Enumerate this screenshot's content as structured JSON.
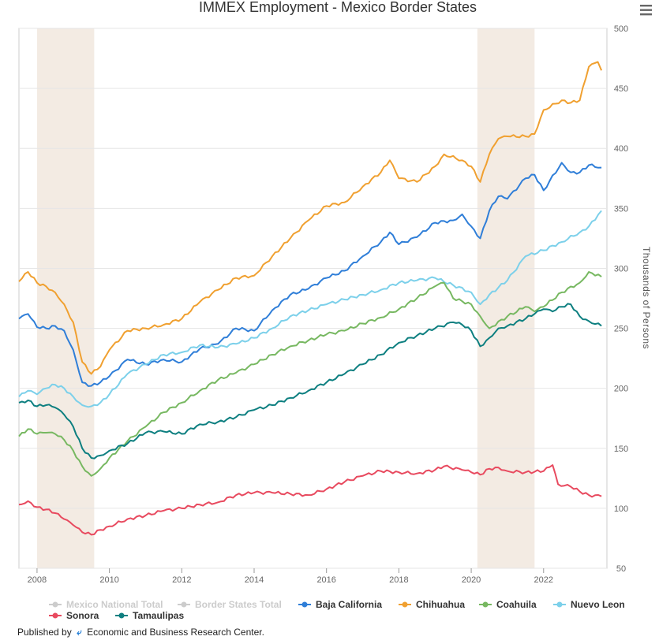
{
  "menu_icon": "hamburger-menu-icon",
  "footer": {
    "published_by": "Published by",
    "org": "Economic and Business Research Center."
  },
  "chart_data": {
    "type": "line",
    "title": "IMMEX Employment - Mexico Border States",
    "xlabel": "",
    "ylabel": "Thousands of Persons",
    "xlim": [
      2007.5,
      2023.75
    ],
    "ylim": [
      50,
      500
    ],
    "yticks": [
      50,
      100,
      150,
      200,
      250,
      300,
      350,
      400,
      450,
      500
    ],
    "xticks": [
      2008,
      2010,
      2012,
      2014,
      2016,
      2018,
      2020,
      2022
    ],
    "recessions": [
      [
        2008.0,
        2009.58
      ],
      [
        2020.17,
        2021.75
      ]
    ],
    "recession_color": "#f3ebe3",
    "legend": [
      {
        "name": "Mexico National Total",
        "color": "#cccccc",
        "visible": false
      },
      {
        "name": "Border States Total",
        "color": "#cccccc",
        "visible": false
      },
      {
        "name": "Baja California",
        "color": "#2f7ed8",
        "visible": true
      },
      {
        "name": "Chihuahua",
        "color": "#f0a030",
        "visible": true
      },
      {
        "name": "Coahuila",
        "color": "#77b861",
        "visible": true
      },
      {
        "name": "Nuevo Leon",
        "color": "#7cd0ea",
        "visible": true
      },
      {
        "name": "Sonora",
        "color": "#e84a5f",
        "visible": true
      },
      {
        "name": "Tamaulipas",
        "color": "#0d7f80",
        "visible": true
      }
    ],
    "series": [
      {
        "name": "Chihuahua",
        "color": "#f0a030",
        "points": [
          [
            2007.5,
            289
          ],
          [
            2007.75,
            297
          ],
          [
            2008.0,
            288
          ],
          [
            2008.25,
            285
          ],
          [
            2008.5,
            280
          ],
          [
            2008.75,
            270
          ],
          [
            2009.0,
            255
          ],
          [
            2009.25,
            222
          ],
          [
            2009.5,
            212
          ],
          [
            2009.75,
            218
          ],
          [
            2010.0,
            232
          ],
          [
            2010.5,
            248
          ],
          [
            2011.0,
            250
          ],
          [
            2011.5,
            253
          ],
          [
            2012.0,
            258
          ],
          [
            2012.5,
            272
          ],
          [
            2013.0,
            282
          ],
          [
            2013.5,
            292
          ],
          [
            2014.0,
            294
          ],
          [
            2014.5,
            310
          ],
          [
            2015.0,
            325
          ],
          [
            2015.5,
            340
          ],
          [
            2016.0,
            352
          ],
          [
            2016.5,
            355
          ],
          [
            2017.0,
            368
          ],
          [
            2017.5,
            380
          ],
          [
            2017.75,
            390
          ],
          [
            2018.0,
            375
          ],
          [
            2018.5,
            372
          ],
          [
            2019.0,
            385
          ],
          [
            2019.25,
            395
          ],
          [
            2019.75,
            390
          ],
          [
            2020.0,
            385
          ],
          [
            2020.25,
            372
          ],
          [
            2020.5,
            395
          ],
          [
            2020.75,
            408
          ],
          [
            2021.0,
            410
          ],
          [
            2021.5,
            410
          ],
          [
            2021.75,
            412
          ],
          [
            2022.0,
            432
          ],
          [
            2022.5,
            440
          ],
          [
            2022.75,
            438
          ],
          [
            2023.0,
            440
          ],
          [
            2023.25,
            468
          ],
          [
            2023.5,
            472
          ],
          [
            2023.6,
            465
          ]
        ]
      },
      {
        "name": "Baja California",
        "color": "#2f7ed8",
        "points": [
          [
            2007.5,
            258
          ],
          [
            2007.75,
            262
          ],
          [
            2008.0,
            251
          ],
          [
            2008.25,
            250
          ],
          [
            2008.5,
            252
          ],
          [
            2008.75,
            248
          ],
          [
            2009.0,
            232
          ],
          [
            2009.25,
            205
          ],
          [
            2009.5,
            202
          ],
          [
            2009.75,
            205
          ],
          [
            2010.0,
            210
          ],
          [
            2010.5,
            224
          ],
          [
            2011.0,
            220
          ],
          [
            2011.5,
            224
          ],
          [
            2012.0,
            222
          ],
          [
            2012.5,
            233
          ],
          [
            2013.0,
            237
          ],
          [
            2013.5,
            250
          ],
          [
            2014.0,
            248
          ],
          [
            2014.5,
            265
          ],
          [
            2015.0,
            278
          ],
          [
            2015.5,
            283
          ],
          [
            2016.0,
            292
          ],
          [
            2016.5,
            298
          ],
          [
            2017.0,
            310
          ],
          [
            2017.5,
            322
          ],
          [
            2017.75,
            330
          ],
          [
            2018.0,
            320
          ],
          [
            2018.5,
            326
          ],
          [
            2019.0,
            338
          ],
          [
            2019.5,
            340
          ],
          [
            2019.75,
            345
          ],
          [
            2020.0,
            335
          ],
          [
            2020.25,
            325
          ],
          [
            2020.5,
            348
          ],
          [
            2020.75,
            360
          ],
          [
            2021.0,
            358
          ],
          [
            2021.5,
            375
          ],
          [
            2021.75,
            378
          ],
          [
            2022.0,
            365
          ],
          [
            2022.5,
            388
          ],
          [
            2022.75,
            380
          ],
          [
            2023.0,
            380
          ],
          [
            2023.25,
            386
          ],
          [
            2023.6,
            384
          ]
        ]
      },
      {
        "name": "Nuevo Leon",
        "color": "#7cd0ea",
        "points": [
          [
            2007.5,
            193
          ],
          [
            2007.75,
            198
          ],
          [
            2008.0,
            195
          ],
          [
            2008.25,
            200
          ],
          [
            2008.5,
            203
          ],
          [
            2008.75,
            200
          ],
          [
            2009.0,
            193
          ],
          [
            2009.25,
            186
          ],
          [
            2009.5,
            185
          ],
          [
            2009.75,
            188
          ],
          [
            2010.0,
            195
          ],
          [
            2010.5,
            212
          ],
          [
            2011.0,
            220
          ],
          [
            2011.5,
            228
          ],
          [
            2012.0,
            230
          ],
          [
            2012.5,
            236
          ],
          [
            2013.0,
            234
          ],
          [
            2013.5,
            237
          ],
          [
            2014.0,
            242
          ],
          [
            2014.5,
            250
          ],
          [
            2015.0,
            260
          ],
          [
            2015.5,
            265
          ],
          [
            2016.0,
            270
          ],
          [
            2016.5,
            274
          ],
          [
            2017.0,
            278
          ],
          [
            2017.5,
            282
          ],
          [
            2018.0,
            288
          ],
          [
            2018.5,
            290
          ],
          [
            2019.0,
            292
          ],
          [
            2019.5,
            286
          ],
          [
            2020.0,
            280
          ],
          [
            2020.25,
            270
          ],
          [
            2020.5,
            278
          ],
          [
            2021.0,
            290
          ],
          [
            2021.5,
            310
          ],
          [
            2022.0,
            315
          ],
          [
            2022.5,
            322
          ],
          [
            2023.0,
            330
          ],
          [
            2023.25,
            335
          ],
          [
            2023.6,
            348
          ]
        ]
      },
      {
        "name": "Coahuila",
        "color": "#77b861",
        "points": [
          [
            2007.5,
            160
          ],
          [
            2007.75,
            166
          ],
          [
            2008.0,
            162
          ],
          [
            2008.25,
            163
          ],
          [
            2008.5,
            162
          ],
          [
            2008.75,
            157
          ],
          [
            2009.0,
            148
          ],
          [
            2009.25,
            135
          ],
          [
            2009.5,
            127
          ],
          [
            2009.75,
            133
          ],
          [
            2010.0,
            142
          ],
          [
            2010.5,
            156
          ],
          [
            2011.0,
            168
          ],
          [
            2011.5,
            180
          ],
          [
            2012.0,
            188
          ],
          [
            2012.5,
            198
          ],
          [
            2013.0,
            207
          ],
          [
            2013.5,
            213
          ],
          [
            2014.0,
            220
          ],
          [
            2014.5,
            228
          ],
          [
            2015.0,
            235
          ],
          [
            2015.5,
            240
          ],
          [
            2016.0,
            245
          ],
          [
            2016.5,
            248
          ],
          [
            2017.0,
            254
          ],
          [
            2017.5,
            259
          ],
          [
            2018.0,
            266
          ],
          [
            2018.5,
            275
          ],
          [
            2019.0,
            285
          ],
          [
            2019.25,
            288
          ],
          [
            2019.5,
            275
          ],
          [
            2020.0,
            270
          ],
          [
            2020.25,
            260
          ],
          [
            2020.5,
            250
          ],
          [
            2021.0,
            260
          ],
          [
            2021.5,
            268
          ],
          [
            2021.75,
            264
          ],
          [
            2022.0,
            268
          ],
          [
            2022.5,
            280
          ],
          [
            2023.0,
            288
          ],
          [
            2023.25,
            297
          ],
          [
            2023.6,
            293
          ]
        ]
      },
      {
        "name": "Tamaulipas",
        "color": "#0d7f80",
        "points": [
          [
            2007.5,
            188
          ],
          [
            2007.75,
            190
          ],
          [
            2008.0,
            185
          ],
          [
            2008.25,
            186
          ],
          [
            2008.5,
            184
          ],
          [
            2008.75,
            178
          ],
          [
            2009.0,
            168
          ],
          [
            2009.25,
            150
          ],
          [
            2009.5,
            142
          ],
          [
            2009.75,
            144
          ],
          [
            2010.0,
            148
          ],
          [
            2010.5,
            154
          ],
          [
            2011.0,
            163
          ],
          [
            2011.5,
            164
          ],
          [
            2012.0,
            162
          ],
          [
            2012.5,
            170
          ],
          [
            2013.0,
            172
          ],
          [
            2013.5,
            176
          ],
          [
            2014.0,
            182
          ],
          [
            2014.5,
            186
          ],
          [
            2015.0,
            192
          ],
          [
            2015.5,
            198
          ],
          [
            2016.0,
            205
          ],
          [
            2016.5,
            212
          ],
          [
            2017.0,
            220
          ],
          [
            2017.5,
            228
          ],
          [
            2018.0,
            238
          ],
          [
            2018.5,
            244
          ],
          [
            2019.0,
            250
          ],
          [
            2019.5,
            255
          ],
          [
            2019.75,
            253
          ],
          [
            2020.0,
            248
          ],
          [
            2020.25,
            235
          ],
          [
            2020.5,
            242
          ],
          [
            2020.75,
            250
          ],
          [
            2021.0,
            252
          ],
          [
            2021.5,
            258
          ],
          [
            2021.75,
            262
          ],
          [
            2022.0,
            266
          ],
          [
            2022.25,
            264
          ],
          [
            2022.5,
            268
          ],
          [
            2022.75,
            270
          ],
          [
            2023.0,
            260
          ],
          [
            2023.25,
            256
          ],
          [
            2023.6,
            252
          ]
        ]
      },
      {
        "name": "Sonora",
        "color": "#e84a5f",
        "points": [
          [
            2007.5,
            103
          ],
          [
            2007.75,
            106
          ],
          [
            2008.0,
            101
          ],
          [
            2008.25,
            99
          ],
          [
            2008.5,
            96
          ],
          [
            2008.75,
            91
          ],
          [
            2009.0,
            86
          ],
          [
            2009.25,
            80
          ],
          [
            2009.5,
            78
          ],
          [
            2009.75,
            82
          ],
          [
            2010.0,
            85
          ],
          [
            2010.5,
            91
          ],
          [
            2011.0,
            94
          ],
          [
            2011.5,
            98
          ],
          [
            2012.0,
            100
          ],
          [
            2012.5,
            103
          ],
          [
            2013.0,
            105
          ],
          [
            2013.5,
            111
          ],
          [
            2014.0,
            113
          ],
          [
            2014.5,
            113
          ],
          [
            2015.0,
            112
          ],
          [
            2015.5,
            111
          ],
          [
            2016.0,
            116
          ],
          [
            2016.5,
            122
          ],
          [
            2017.0,
            127
          ],
          [
            2017.5,
            131
          ],
          [
            2018.0,
            130
          ],
          [
            2018.5,
            129
          ],
          [
            2019.0,
            132
          ],
          [
            2019.25,
            135
          ],
          [
            2019.75,
            132
          ],
          [
            2020.0,
            130
          ],
          [
            2020.25,
            128
          ],
          [
            2020.5,
            133
          ],
          [
            2020.75,
            134
          ],
          [
            2021.0,
            131
          ],
          [
            2021.5,
            130
          ],
          [
            2022.0,
            131
          ],
          [
            2022.25,
            136
          ],
          [
            2022.4,
            120
          ],
          [
            2022.75,
            118
          ],
          [
            2023.0,
            114
          ],
          [
            2023.25,
            111
          ],
          [
            2023.6,
            110
          ]
        ]
      }
    ]
  }
}
